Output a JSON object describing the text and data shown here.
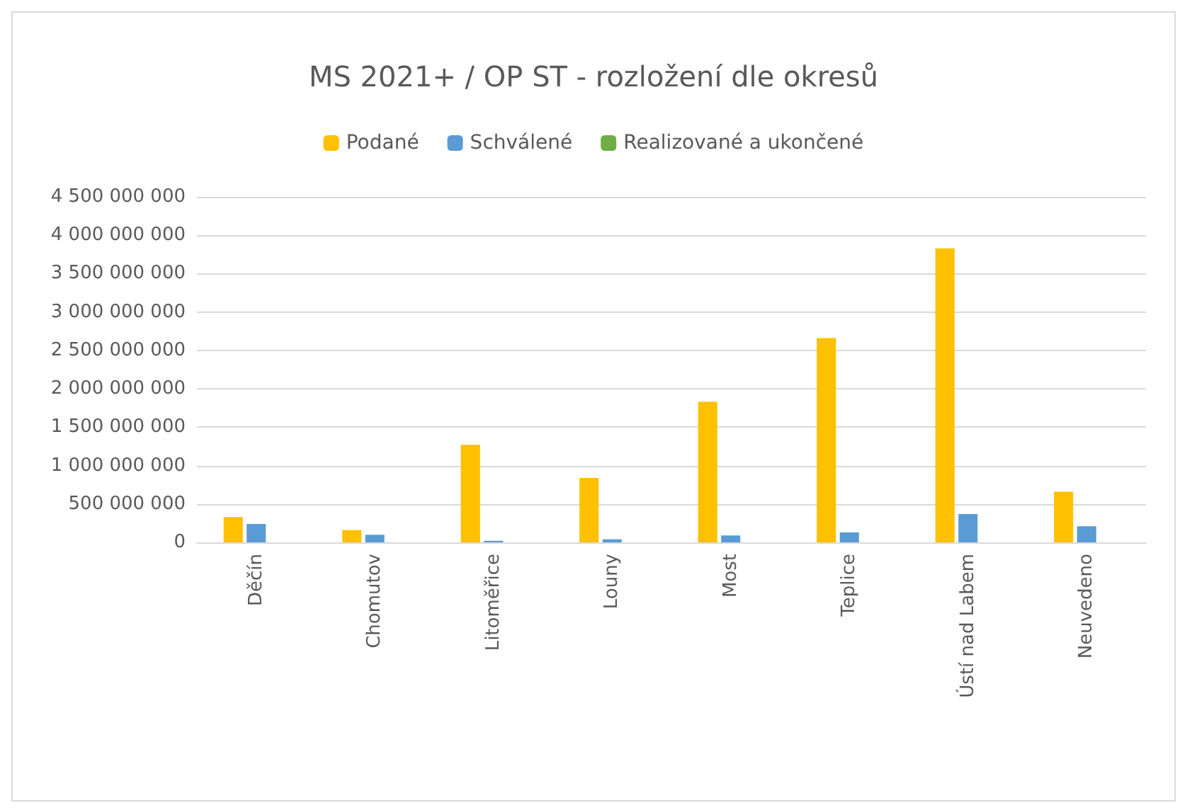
{
  "chart_data": {
    "type": "bar",
    "title": "MS 2021+ / OP ST - rozložení dle okresů",
    "categories": [
      "Děčín",
      "Chomutov",
      "Litoměřice",
      "Louny",
      "Most",
      "Teplice",
      "Ústí nad Labem",
      "Neuvedeno"
    ],
    "series": [
      {
        "name": "Podané",
        "color": "#ffc000",
        "values": [
          330000000,
          160000000,
          1270000000,
          840000000,
          1830000000,
          2660000000,
          3830000000,
          660000000
        ]
      },
      {
        "name": "Schválené",
        "color": "#5b9bd5",
        "values": [
          240000000,
          100000000,
          20000000,
          40000000,
          90000000,
          130000000,
          370000000,
          210000000
        ]
      },
      {
        "name": "Realizované a ukončené",
        "color": "#70ad47",
        "values": [
          0,
          0,
          0,
          0,
          0,
          0,
          0,
          0
        ]
      }
    ],
    "ylim": [
      0,
      4500000000
    ],
    "yticks": [
      0,
      500000000,
      1000000000,
      1500000000,
      2000000000,
      2500000000,
      3000000000,
      3500000000,
      4000000000,
      4500000000
    ],
    "grid": "y",
    "legend": "top"
  }
}
